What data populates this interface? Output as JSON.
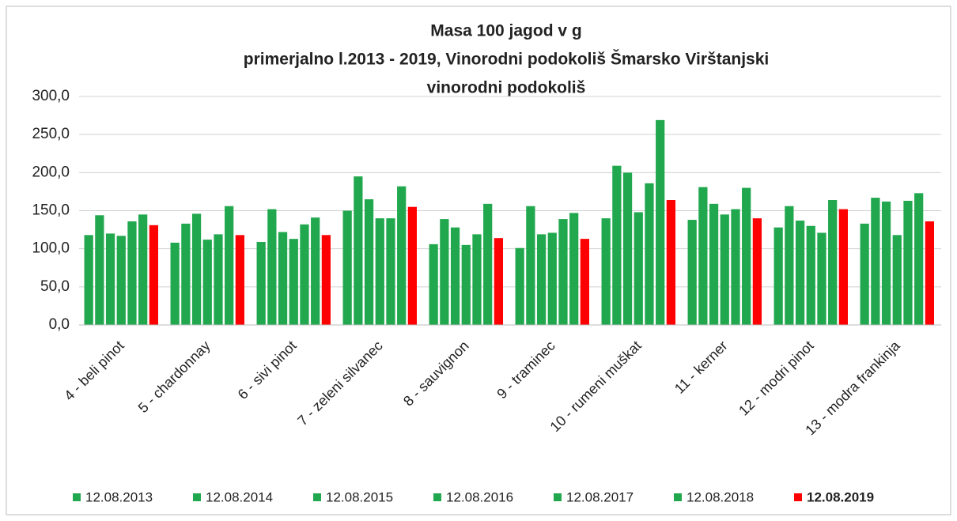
{
  "chart_data": {
    "type": "bar",
    "title": [
      "Masa 100 jagod v g",
      "primerjalno l.2013 - 2019, Vinorodni podokoliš Šmarsko Virštanjski",
      "vinorodni podokoliš"
    ],
    "categories": [
      "4 - beli pinot",
      "5 - chardonnay",
      "6 - sivi pinot",
      "7 - zeleni silvanec",
      "8 - sauvignon",
      "9 - traminec",
      "10 - rumeni muškat",
      "11 - kerner",
      "12 - modri pinot",
      "13 - modra frankinja"
    ],
    "series": [
      {
        "name": "12.08.2013",
        "color": "#21a84e",
        "values": [
          118,
          108,
          109,
          150,
          106,
          101,
          140,
          138,
          128,
          133
        ]
      },
      {
        "name": "12.08.2014",
        "color": "#21a84e",
        "values": [
          144,
          133,
          152,
          195,
          139,
          156,
          209,
          181,
          156,
          167
        ]
      },
      {
        "name": "12.08.2015",
        "color": "#21a84e",
        "values": [
          120,
          146,
          122,
          165,
          128,
          119,
          200,
          159,
          137,
          162
        ]
      },
      {
        "name": "12.08.2016",
        "color": "#21a84e",
        "values": [
          117,
          112,
          113,
          140,
          105,
          121,
          148,
          145,
          130,
          118
        ]
      },
      {
        "name": "12.08.2017",
        "color": "#21a84e",
        "values": [
          136,
          119,
          132,
          140,
          119,
          139,
          186,
          152,
          121,
          163
        ]
      },
      {
        "name": "12.08.2018",
        "color": "#21a84e",
        "values": [
          145,
          156,
          141,
          182,
          159,
          147,
          269,
          180,
          164,
          173
        ]
      },
      {
        "name": "12.08.2019",
        "color": "#ff0000",
        "values": [
          131,
          118,
          118,
          155,
          114,
          113,
          164,
          140,
          152,
          136
        ]
      }
    ],
    "ylim": [
      0,
      300
    ],
    "yticks": [
      {
        "value": 0,
        "label": "0,0"
      },
      {
        "value": 50,
        "label": "50,0"
      },
      {
        "value": 100,
        "label": "100,0"
      },
      {
        "value": 150,
        "label": "150,0"
      },
      {
        "value": 200,
        "label": "200,0"
      },
      {
        "value": 250,
        "label": "250,0"
      },
      {
        "value": 300,
        "label": "300,0"
      }
    ],
    "grid": true,
    "legend": "bottom"
  }
}
